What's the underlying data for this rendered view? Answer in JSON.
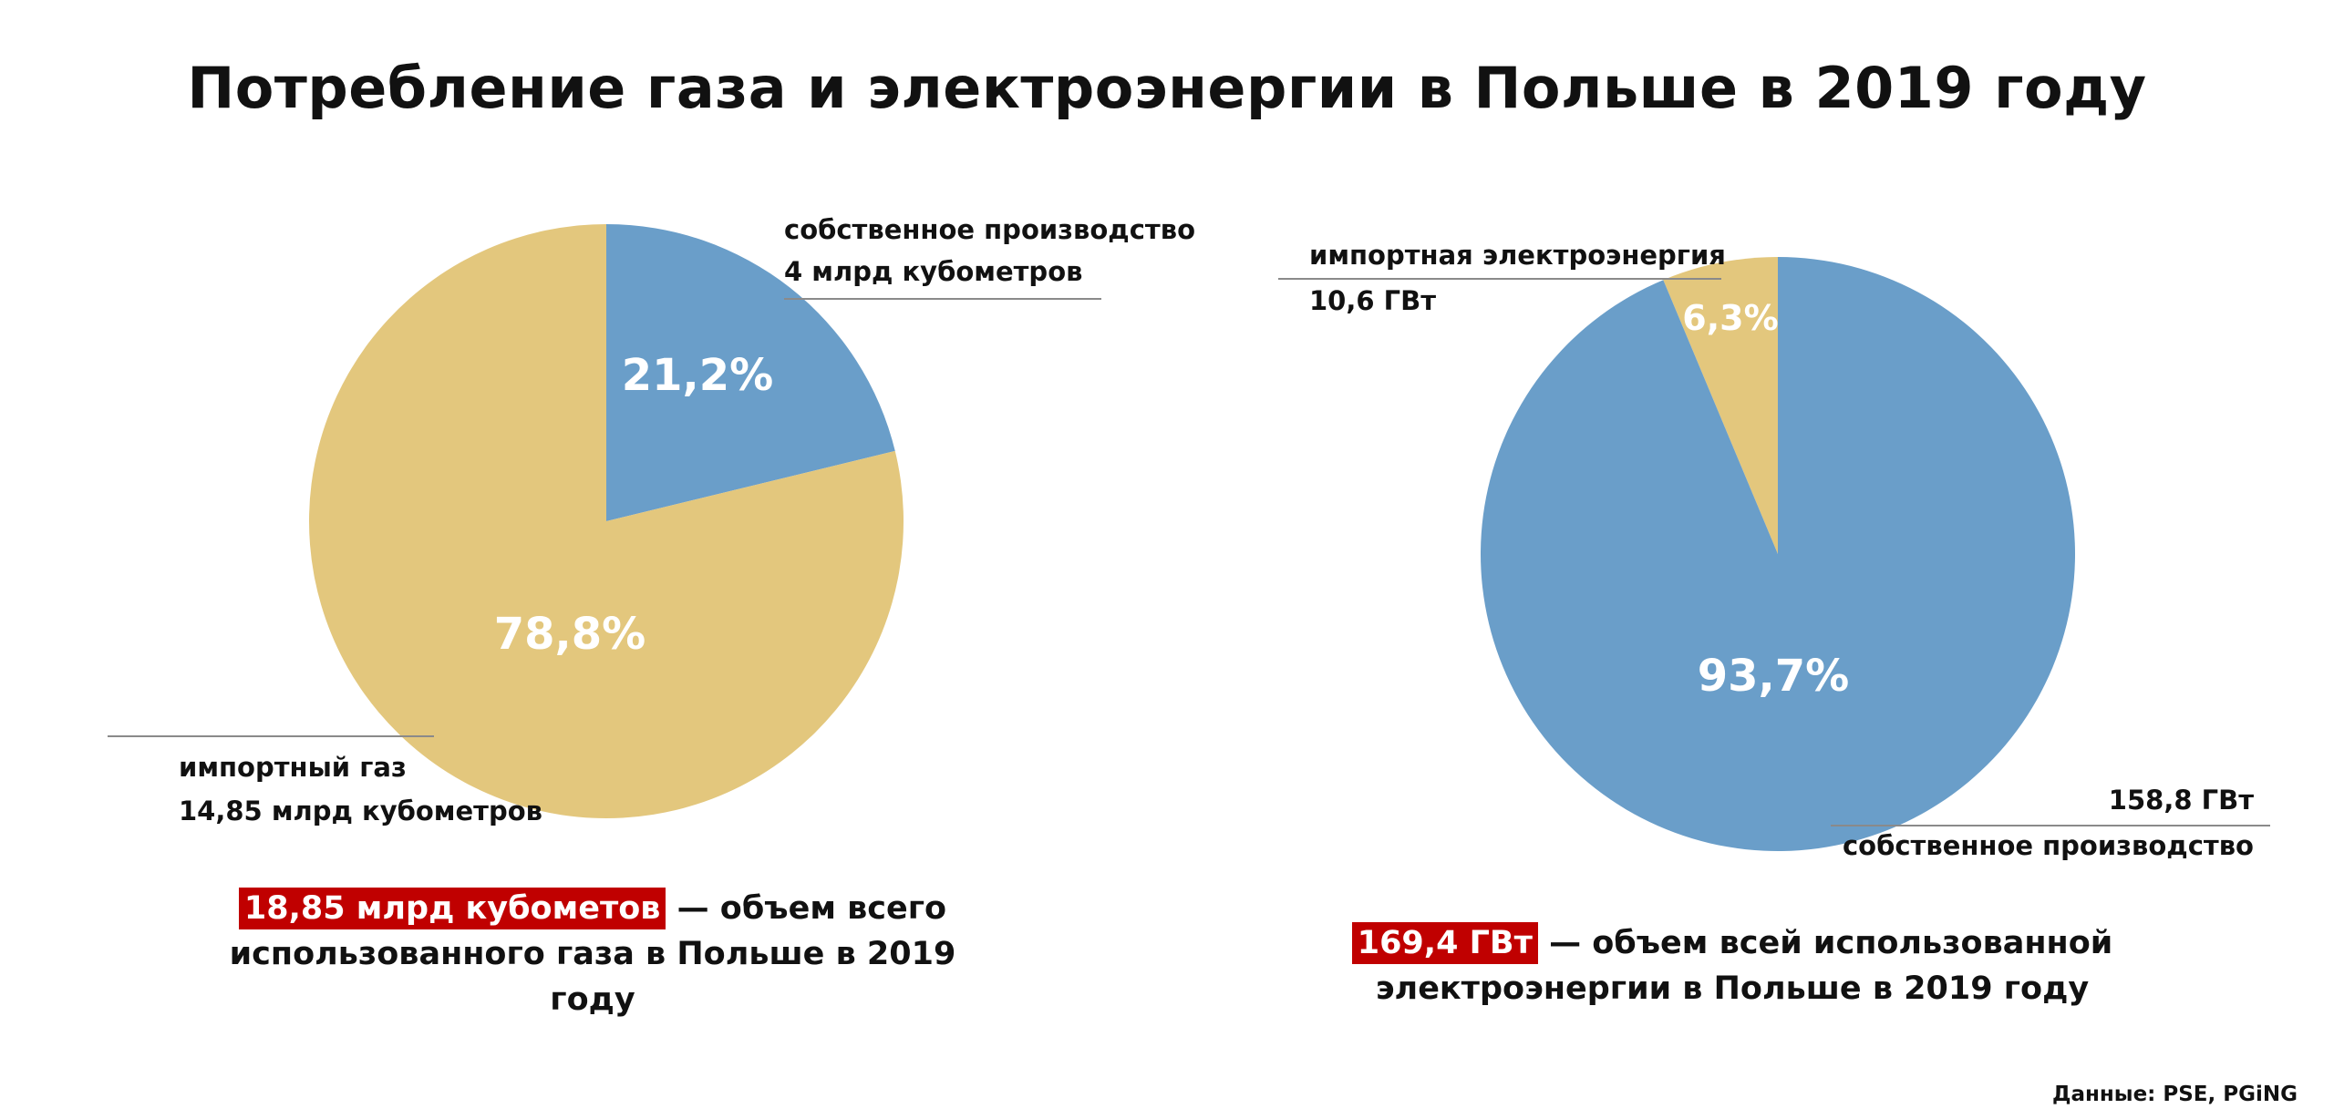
{
  "title": "Потребление газа и электроэнергии в Польше в 2019 году",
  "chart_data": [
    {
      "type": "pie",
      "slices": [
        {
          "label": "собственное производство",
          "sublabel": "4 млрд кубометров",
          "value": 21.2,
          "pct_label": "21,2%",
          "color": "#6a9ec9"
        },
        {
          "label": "импортный газ",
          "sublabel": "14,85 млрд кубометров",
          "value": 78.8,
          "pct_label": "78,8%",
          "color": "#e3c77d"
        }
      ],
      "summary": {
        "highlight": "18,85 млрд кубометов",
        "line1": " — объем всего",
        "line2": "использованного газа в Польше в 2019 году"
      }
    },
    {
      "type": "pie",
      "slices": [
        {
          "label": "импортная электроэнергия",
          "sublabel": "10,6 ГВт",
          "value": 6.3,
          "pct_label": "6,3%",
          "color": "#e3c77d"
        },
        {
          "label": "собственное производство",
          "sublabel": "158,8 ГВт",
          "value": 93.7,
          "pct_label": "93,7%",
          "color": "#6a9ec9"
        }
      ],
      "summary": {
        "highlight": "169,4 ГВт",
        "line1": " — объем всей использованной",
        "line2": "электроэнергии в Польше в 2019 году"
      }
    }
  ],
  "source": "Данные: PSE, PGiNG"
}
